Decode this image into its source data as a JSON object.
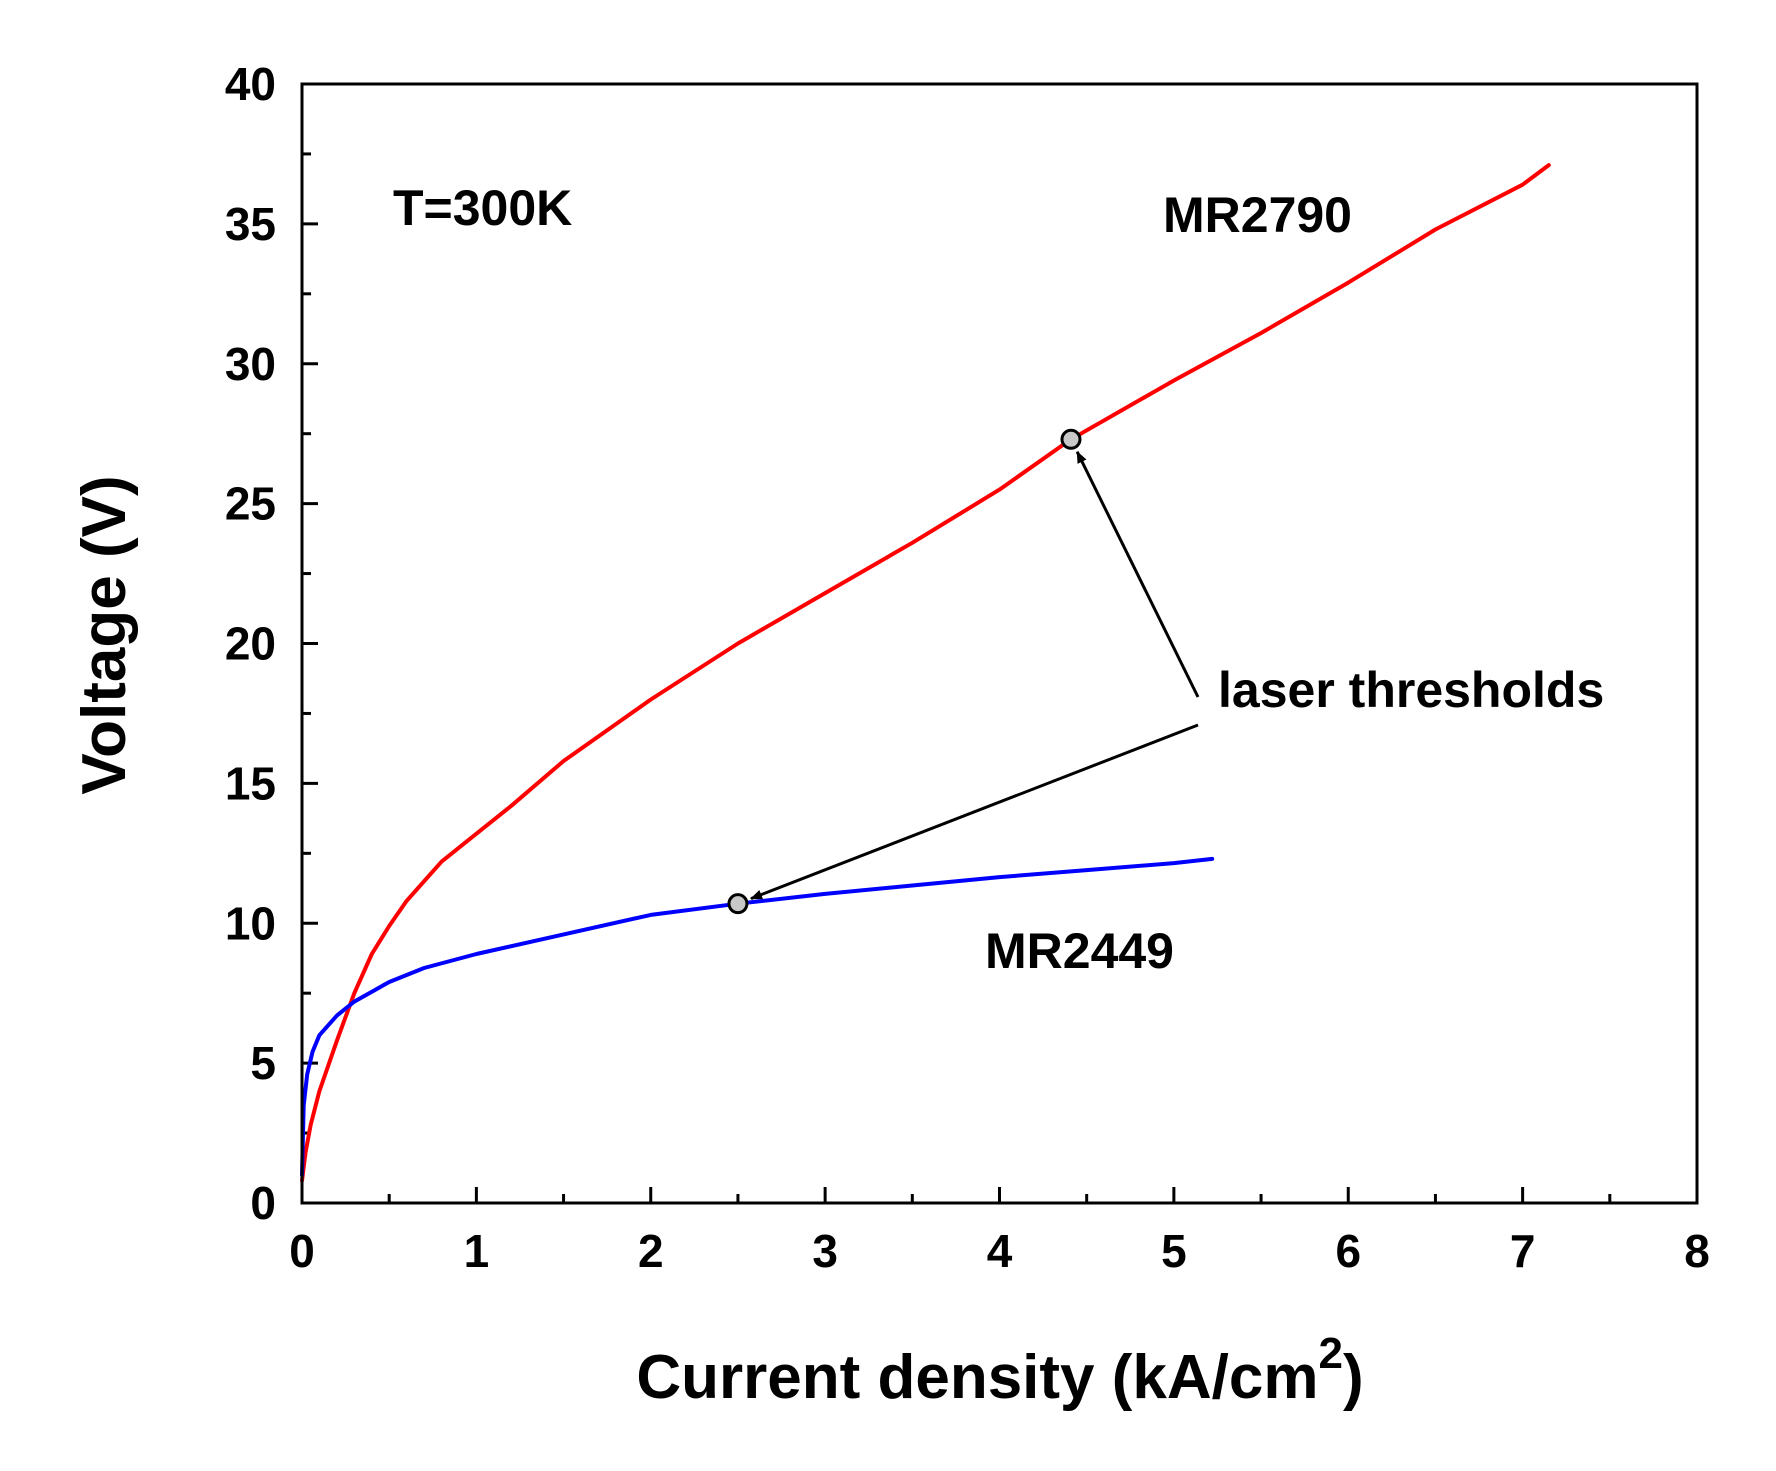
{
  "chart_data": {
    "type": "line",
    "title": "",
    "xlabel": "Current density (kA/cm",
    "xlabel_sup": "2",
    "xlabel_close": ")",
    "ylabel": "Voltage (V)",
    "xlim": [
      0,
      8
    ],
    "ylim": [
      0,
      40
    ],
    "x_ticks": [
      0,
      1,
      2,
      3,
      4,
      5,
      6,
      7,
      8
    ],
    "y_ticks": [
      0,
      5,
      10,
      15,
      20,
      25,
      30,
      35,
      40
    ],
    "grid": false,
    "series": [
      {
        "name": "MR2790",
        "color": "#ff0000",
        "x": [
          0,
          0.02,
          0.05,
          0.1,
          0.2,
          0.3,
          0.4,
          0.5,
          0.6,
          0.8,
          1.0,
          1.2,
          1.5,
          2.0,
          2.5,
          3.0,
          3.5,
          4.0,
          4.41,
          5.0,
          5.5,
          6.0,
          6.5,
          7.0,
          7.15
        ],
        "y": [
          0.8,
          1.8,
          2.8,
          4.0,
          5.8,
          7.5,
          8.9,
          9.9,
          10.8,
          12.2,
          13.2,
          14.2,
          15.8,
          18.0,
          20.0,
          21.8,
          23.6,
          25.5,
          27.3,
          29.4,
          31.1,
          32.9,
          34.8,
          36.4,
          37.1
        ]
      },
      {
        "name": "MR2449",
        "color": "#0000ff",
        "x": [
          0,
          0.01,
          0.03,
          0.06,
          0.1,
          0.2,
          0.3,
          0.5,
          0.7,
          1.0,
          1.5,
          2.0,
          2.5,
          3.0,
          3.5,
          4.0,
          4.5,
          5.0,
          5.22
        ],
        "y": [
          1.0,
          3.5,
          4.6,
          5.4,
          6.0,
          6.7,
          7.2,
          7.9,
          8.4,
          8.9,
          9.6,
          10.3,
          10.7,
          11.05,
          11.35,
          11.65,
          11.9,
          12.15,
          12.3
        ]
      }
    ],
    "threshold_points": [
      {
        "series": "MR2790",
        "x": 4.41,
        "y": 27.3
      },
      {
        "series": "MR2449",
        "x": 2.5,
        "y": 10.7
      }
    ],
    "annotations": {
      "temperature": "T=300K",
      "series1_label": "MR2790",
      "series2_label": "MR2449",
      "arrow_label": "laser thresholds"
    }
  }
}
